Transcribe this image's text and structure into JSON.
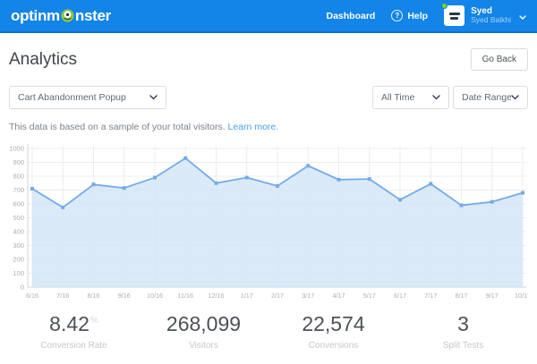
{
  "navbar": {
    "logo_prefix": "optinm",
    "logo_suffix": "nster",
    "dashboard_label": "Dashboard",
    "help_icon": "?",
    "help_label": "Help",
    "user_name": "Syed",
    "user_fullname": "Syed Balkhi",
    "brand_color": "#1384e8"
  },
  "header": {
    "title": "Analytics",
    "go_back_label": "Go Back"
  },
  "controls": {
    "campaign_select": "Cart Abandonment Popup",
    "time_select": "All Time",
    "date_range_select": "Date Range"
  },
  "note": {
    "text": "This data is based on a sample of your total visitors.",
    "link": "Learn more."
  },
  "chart_data": {
    "type": "area",
    "title": "",
    "xlabel": "",
    "ylabel": "",
    "x": [
      "6/16",
      "7/16",
      "8/16",
      "9/16",
      "10/16",
      "11/16",
      "12/16",
      "1/17",
      "2/17",
      "3/17",
      "4/17",
      "5/17",
      "6/17",
      "7/17",
      "8/17",
      "9/17",
      "10/17"
    ],
    "values": [
      710,
      575,
      740,
      715,
      790,
      930,
      750,
      790,
      730,
      875,
      775,
      780,
      630,
      745,
      590,
      615,
      680
    ],
    "ylim": [
      0,
      1000
    ],
    "ytick_step": 100,
    "grid": true,
    "legend": "none",
    "line_color": "#74abe8",
    "fill_color": "#d4e6f8",
    "axis_color": "#cfd4d9",
    "grid_color": "#ececec",
    "tick_color": "#a9b0b7"
  },
  "stats": [
    {
      "value": "8.42",
      "suffix": "%",
      "label": "Conversion Rate"
    },
    {
      "value": "268,099",
      "suffix": "",
      "label": "Visitors"
    },
    {
      "value": "22,574",
      "suffix": "",
      "label": "Conversions"
    },
    {
      "value": "3",
      "suffix": "",
      "label": "Split Tests"
    }
  ]
}
